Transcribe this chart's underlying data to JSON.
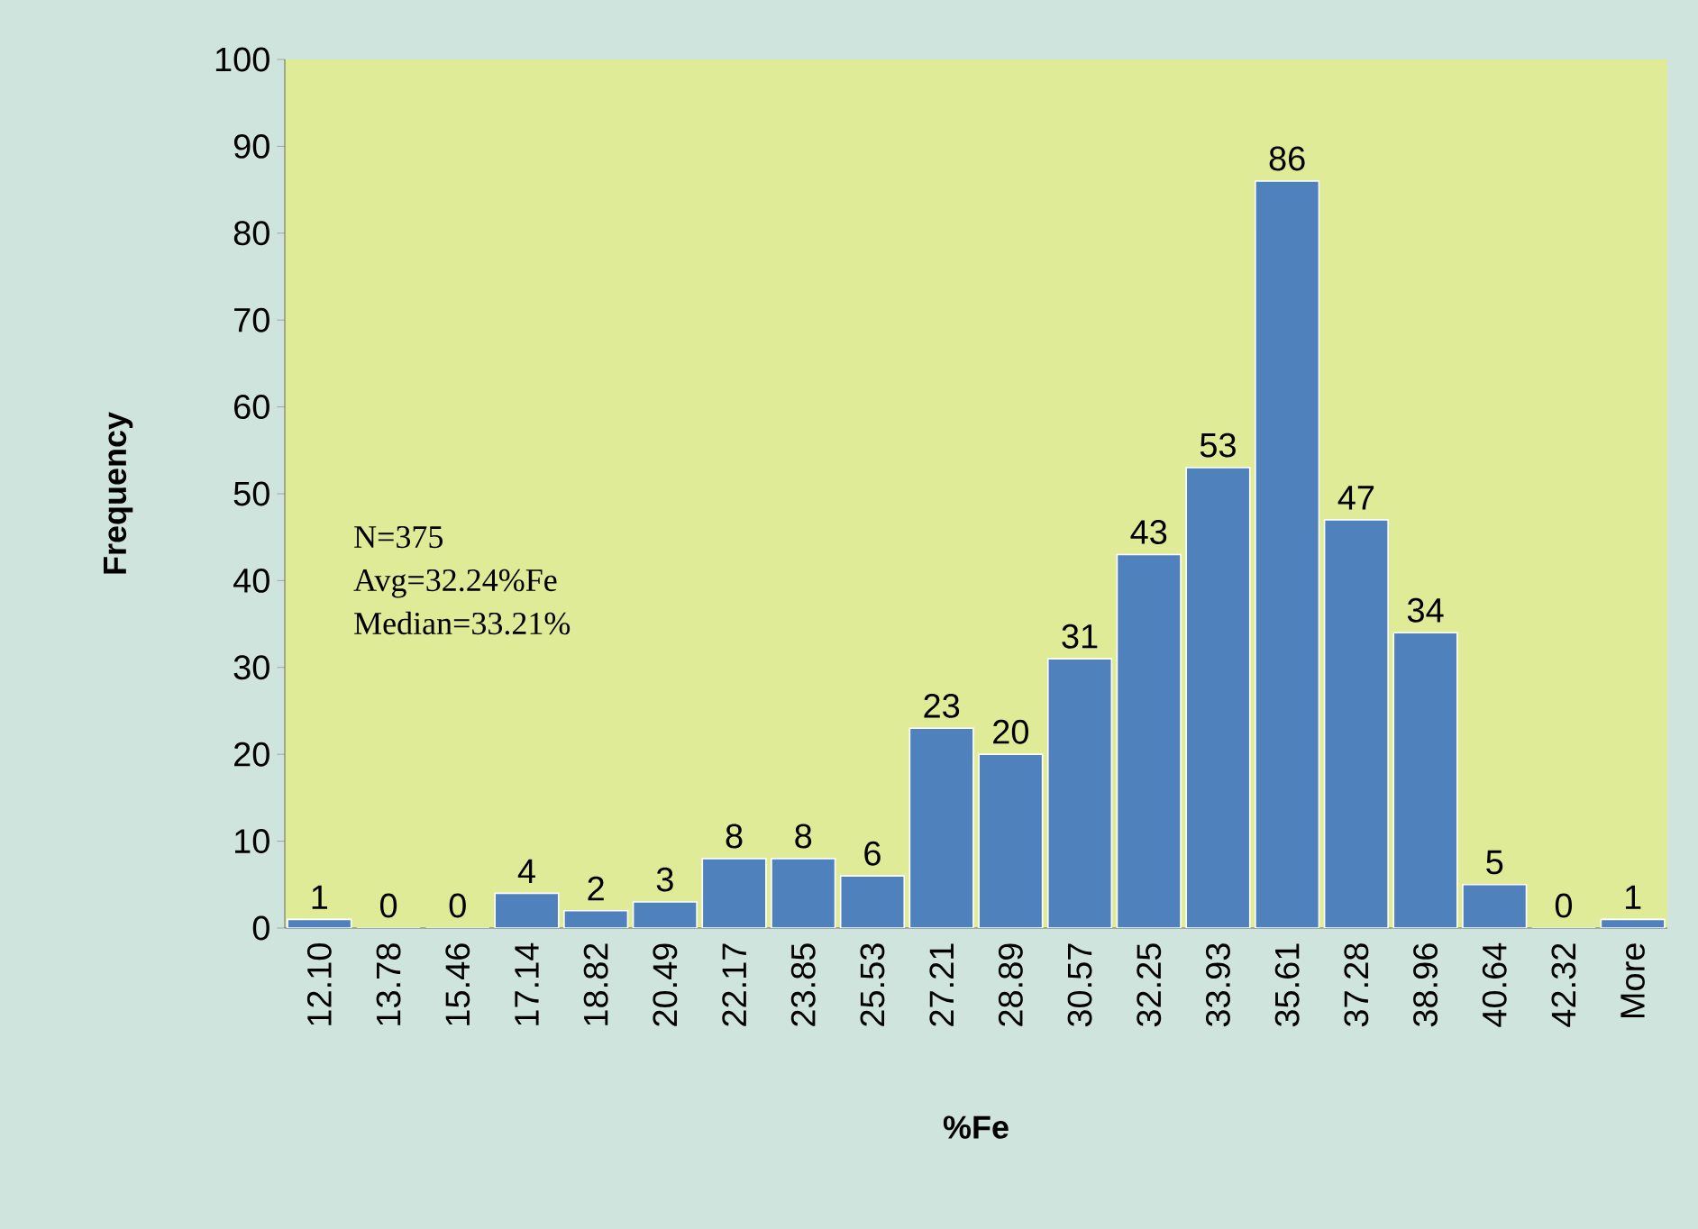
{
  "chart_data": {
    "type": "bar",
    "xlabel": "%Fe",
    "ylabel": "Frequency",
    "categories": [
      "12.10",
      "13.78",
      "15.46",
      "17.14",
      "18.82",
      "20.49",
      "22.17",
      "23.85",
      "25.53",
      "27.21",
      "28.89",
      "30.57",
      "32.25",
      "33.93",
      "35.61",
      "37.28",
      "38.96",
      "40.64",
      "42.32",
      "More"
    ],
    "values": [
      1,
      0,
      0,
      4,
      2,
      3,
      8,
      8,
      6,
      23,
      20,
      31,
      43,
      53,
      86,
      47,
      34,
      5,
      0,
      1
    ],
    "color": "#4f81bd",
    "ylim": [
      0,
      100
    ],
    "yticks": [
      0,
      10,
      20,
      30,
      40,
      50,
      60,
      70,
      80,
      90,
      100
    ],
    "data_labels": true,
    "annotations": [
      "N=375",
      "Avg=32.24%Fe",
      "Median=33.21%"
    ]
  }
}
